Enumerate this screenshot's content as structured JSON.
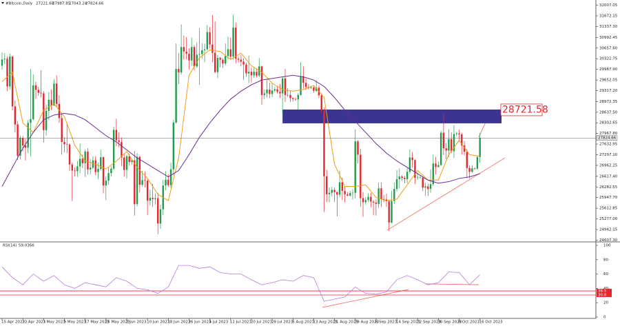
{
  "chart_data": {
    "type": "candlestick",
    "symbol": "#Bitcoin,Daily",
    "categories": [
      "15 Apr 2023",
      null,
      null,
      null,
      null,
      null,
      null,
      null,
      "23 Apr 2023",
      null,
      null,
      null,
      null,
      null,
      null,
      null,
      "1 May 2023",
      null,
      null,
      null,
      null,
      null,
      null,
      null,
      "9 May 2023",
      null,
      null,
      null,
      null,
      null,
      null,
      null,
      "17 May 2023",
      null,
      null,
      null,
      null,
      null,
      null,
      null,
      "25 May 2023",
      null,
      null,
      null,
      null,
      null,
      null,
      null,
      "2 Jun 2023",
      null,
      null,
      null,
      null,
      null,
      null,
      null,
      "10 Jun 2023",
      null,
      null,
      null,
      null,
      null,
      null,
      null,
      "18 Jun 2023",
      null,
      null,
      null,
      null,
      null,
      null,
      null,
      "26 Jun 2023",
      null,
      null,
      null,
      null,
      null,
      null,
      null,
      "4 Jul 2023",
      null,
      null,
      null,
      null,
      null,
      null,
      null,
      "12 Jul 2023",
      null,
      null,
      null,
      null,
      null,
      null,
      null,
      "20 Jul 2023",
      null,
      null,
      null,
      null,
      null,
      null,
      null,
      "28 Jul 2023",
      null,
      null,
      null,
      null,
      null,
      null,
      null,
      "5 Aug 2023",
      null,
      null,
      null,
      null,
      null,
      null,
      null,
      "13 Aug 2023",
      null,
      null,
      null,
      null,
      null,
      null,
      null,
      "21 Aug 2023",
      null,
      null,
      null,
      null,
      null,
      null,
      null,
      "29 Aug 2023",
      null,
      null,
      null,
      null,
      null,
      null,
      null,
      "6 Sep 2023",
      null,
      null,
      null,
      null,
      null,
      null,
      null,
      "14 Sep 2023",
      null,
      null,
      null,
      null,
      null,
      null,
      null,
      "22 Sep 2023",
      null,
      null,
      null,
      null,
      null,
      null,
      null,
      "30 Sep 2023",
      null,
      null,
      null,
      null,
      null,
      null,
      null,
      "8 Oct 2023",
      null,
      null,
      null,
      null,
      null,
      null,
      null,
      "16 Oct 2023"
    ],
    "open": [
      30100,
      30300,
      30320,
      29450,
      30390,
      28820,
      28250,
      27270,
      27820,
      27590,
      27520,
      28300,
      28420,
      29480,
      29340,
      29250,
      29230,
      28070,
      28680,
      29030,
      28850,
      29540,
      28900,
      28450,
      27700,
      27630,
      27620,
      26990,
      26800,
      26780,
      26930,
      27170,
      27030,
      27400,
      26830,
      26890,
      27120,
      26750,
      26850,
      27220,
      26330,
      26480,
      26720,
      26860,
      28080,
      27750,
      27700,
      27210,
      26820,
      27250,
      27070,
      27120,
      25740,
      27230,
      26350,
      26500,
      26480,
      25850,
      25940,
      25900,
      25930,
      25130,
      25580,
      26330,
      26510,
      26340,
      26840,
      28310,
      30000,
      29890,
      30690,
      30550,
      30480,
      30270,
      30690,
      30080,
      30450,
      30470,
      30590,
      30620,
      31160,
      30770,
      30510,
      29900,
      30350,
      30290,
      30170,
      30410,
      30620,
      30390,
      31300,
      30320,
      30290,
      30230,
      30140,
      29860,
      29910,
      29800,
      29910,
      29790,
      30080,
      29180,
      29230,
      29350,
      29210,
      29320,
      29360,
      29280,
      29230,
      29700,
      29180,
      29180,
      29080,
      29050,
      29040,
      29180,
      29770,
      29560,
      29430,
      29400,
      29420,
      29310,
      29410,
      29170,
      28700,
      26620,
      26050,
      26100,
      26190,
      26120,
      26040,
      26430,
      26160,
      26050,
      26010,
      26090,
      26100,
      27720,
      27300,
      25930,
      25800,
      25870,
      25970,
      25820,
      25790,
      25750,
      26240,
      25900,
      25890,
      25830,
      25160,
      25840,
      26220,
      26530,
      26610,
      26570,
      26530,
      26760,
      27210,
      27130,
      26570,
      26580,
      26580,
      26260,
      26300,
      26220,
      26370,
      27020,
      26910,
      26970,
      27990,
      27500,
      27430,
      27790,
      27410,
      27950,
      27970,
      27940,
      27590,
      27390,
      26880,
      26760,
      26870,
      26860,
      27221.68
    ],
    "high": [
      30520,
      30500,
      30400,
      30480,
      30420,
      29000,
      28360,
      27900,
      27890,
      27800,
      28400,
      30000,
      29830,
      29600,
      29440,
      29960,
      29300,
      28880,
      29270,
      29360,
      29680,
      29800,
      29170,
      28580,
      27850,
      28300,
      27650,
      27050,
      26900,
      27100,
      27650,
      27300,
      27470,
      27500,
      27160,
      27250,
      27250,
      27050,
      27450,
      27250,
      26620,
      26900,
      26940,
      28180,
      28430,
      28000,
      27840,
      27330,
      27300,
      27330,
      27160,
      27420,
      27350,
      27260,
      26790,
      26770,
      26530,
      26200,
      26380,
      26080,
      26100,
      25720,
      26500,
      26780,
      26680,
      27050,
      28400,
      30800,
      30500,
      31400,
      31050,
      31000,
      30650,
      30990,
      30750,
      30840,
      31280,
      30810,
      30800,
      31380,
      31320,
      31700,
      31500,
      30440,
      30380,
      30340,
      30800,
      31020,
      30990,
      31700,
      31450,
      30400,
      30440,
      30340,
      30200,
      30420,
      30050,
      30060,
      30020,
      30340,
      30100,
      29350,
      29680,
      29570,
      29550,
      29430,
      29460,
      29530,
      29740,
      30000,
      29400,
      29300,
      29110,
      29100,
      29240,
      30210,
      30080,
      29700,
      29530,
      29470,
      29450,
      29650,
      29480,
      29230,
      28780,
      26820,
      26270,
      26290,
      26260,
      26140,
      26790,
      26580,
      26310,
      26120,
      26160,
      26210,
      28100,
      27760,
      27480,
      26120,
      25970,
      26080,
      26100,
      25870,
      25890,
      26410,
      26420,
      26030,
      26070,
      25880,
      26160,
      26420,
      26810,
      26870,
      26660,
      26630,
      26880,
      27460,
      27380,
      27160,
      26730,
      26640,
      26600,
      26420,
      26390,
      26830,
      27300,
      27230,
      27080,
      28050,
      28580,
      27670,
      28100,
      28000,
      28240,
      28020,
      28090,
      27990,
      27730,
      27470,
      26970,
      26970,
      26900,
      27270,
      27987.85
    ],
    "low": [
      29980,
      30150,
      29300,
      29350,
      28700,
      28000,
      27130,
      27150,
      27400,
      27120,
      27350,
      27250,
      28380,
      29060,
      29150,
      29100,
      27680,
      27900,
      28400,
      28700,
      28830,
      28800,
      28300,
      27300,
      27370,
      27350,
      26780,
      25840,
      26610,
      26600,
      26720,
      26880,
      26600,
      26670,
      26680,
      26850,
      26650,
      26530,
      26800,
      26080,
      25870,
      26350,
      26620,
      26820,
      27560,
      27540,
      26940,
      26600,
      26550,
      26950,
      26980,
      25380,
      25670,
      26120,
      26300,
      26270,
      25400,
      25700,
      25650,
      25720,
      24800,
      24960,
      25400,
      26180,
      26280,
      26250,
      26650,
      28280,
      29520,
      29830,
      30280,
      30300,
      29980,
      30100,
      29960,
      30030,
      29500,
      30320,
      30210,
      30580,
      30640,
      30210,
      29860,
      29710,
      30050,
      30030,
      30110,
      30300,
      30300,
      30290,
      30180,
      30200,
      30080,
      29660,
      29750,
      29550,
      29580,
      29720,
      29730,
      29740,
      28870,
      29050,
      29100,
      29080,
      29110,
      29260,
      29230,
      29080,
      28590,
      28960,
      29110,
      28960,
      28970,
      28990,
      28720,
      29150,
      29380,
      29340,
      29350,
      29360,
      29250,
      29270,
      29080,
      28620,
      25500,
      25800,
      25800,
      25980,
      25810,
      25360,
      25960,
      25870,
      25800,
      25990,
      25980,
      25890,
      25920,
      27020,
      25660,
      25340,
      25730,
      25810,
      25640,
      25390,
      25380,
      25620,
      25650,
      25800,
      25650,
      24900,
      25130,
      25750,
      26140,
      26240,
      26470,
      26400,
      26400,
      26700,
      26890,
      26380,
      26510,
      26540,
      26150,
      26000,
      26000,
      26100,
      26310,
      26670,
      26900,
      26950,
      27290,
      27160,
      27230,
      27350,
      27200,
      27880,
      27710,
      27300,
      27280,
      26560,
      26550,
      26730,
      26820,
      26820,
      27043.24
    ],
    "close": [
      30300,
      30320,
      29450,
      30390,
      28820,
      28250,
      27270,
      27820,
      27590,
      27520,
      28300,
      28420,
      29480,
      29340,
      29250,
      29230,
      28070,
      28680,
      29030,
      28850,
      29540,
      28900,
      28450,
      27700,
      27630,
      27620,
      26990,
      26800,
      26780,
      26930,
      27170,
      27030,
      27400,
      26830,
      26890,
      27120,
      26750,
      26850,
      27220,
      26330,
      26480,
      26720,
      26860,
      28080,
      27750,
      27700,
      27210,
      26820,
      27250,
      27070,
      27120,
      25740,
      27230,
      26350,
      26500,
      26480,
      25850,
      25940,
      25900,
      25930,
      25130,
      25580,
      26330,
      26510,
      26340,
      26840,
      28310,
      30000,
      29890,
      30690,
      30550,
      30480,
      30270,
      30690,
      30080,
      30450,
      30470,
      30590,
      30620,
      31160,
      30770,
      30510,
      29900,
      30350,
      30290,
      30170,
      30410,
      30620,
      30390,
      31300,
      30320,
      30290,
      30230,
      30140,
      29860,
      29910,
      29800,
      29910,
      29790,
      30080,
      29180,
      29230,
      29350,
      29210,
      29320,
      29360,
      29280,
      29230,
      29700,
      29180,
      29180,
      29080,
      29050,
      29040,
      29180,
      29770,
      29560,
      29430,
      29400,
      29420,
      29310,
      29410,
      29170,
      28700,
      26620,
      26050,
      26100,
      26190,
      26120,
      26040,
      26430,
      26160,
      26050,
      26010,
      26090,
      26100,
      27720,
      27300,
      25930,
      25800,
      25870,
      25970,
      25820,
      25790,
      25750,
      26240,
      25900,
      25890,
      25830,
      25160,
      25840,
      26220,
      26530,
      26610,
      26570,
      26530,
      26760,
      27210,
      27130,
      26570,
      26580,
      26580,
      26260,
      26300,
      26220,
      26370,
      27020,
      26910,
      26970,
      27990,
      27500,
      27430,
      27790,
      27410,
      27950,
      27970,
      27940,
      27590,
      27390,
      26880,
      26760,
      26870,
      26860,
      27221.68,
      27824.66
    ],
    "up_color": "#1f9d4c",
    "down_color": "#e4262f",
    "ylim": [
      24573,
      32172
    ],
    "yticks": [
      32007.05,
      31672.15,
      {
        "value": 31337.3,
        "label": "31337.30"
      },
      30992.45,
      {
        "value": 30657.6,
        "label": "30657.60"
      },
      30322.75,
      {
        "value": 29987.9,
        "label": "29987.90"
      },
      29652.05,
      {
        "value": 29317.2,
        "label": "29317.20"
      },
      28972.35,
      {
        "value": 28637.5,
        "label": "28637.50"
      },
      28302.65,
      {
        "value": 27967.8,
        "label": "27967.80"
      },
      27632.95,
      {
        "value": 27297.1,
        "label": "27297.10"
      },
      26962.25,
      {
        "value": 26617.4,
        "label": "26617.40"
      },
      26282.55,
      {
        "value": 25947.7,
        "label": "25947.70"
      },
      25612.85,
      {
        "value": 25277,
        "label": "25277.00"
      },
      24942.15,
      {
        "value": 24607.3,
        "label": "24607.30"
      }
    ],
    "lines": [
      {
        "color": "#f39c12",
        "x": [
          0,
          4,
          8,
          12,
          16,
          20,
          24,
          28,
          32,
          36,
          40,
          44,
          48,
          52,
          56,
          60,
          64,
          68,
          72,
          76,
          80,
          84,
          88,
          92,
          96,
          100,
          104,
          108,
          112,
          116,
          120,
          124,
          128,
          132,
          136,
          140,
          144,
          148,
          152,
          156,
          160,
          164,
          168,
          172,
          176,
          180,
          184
        ],
        "values": [
          29600,
          29900,
          28300,
          28000,
          28700,
          28900,
          28500,
          27600,
          27100,
          27000,
          26850,
          27100,
          27400,
          26900,
          26550,
          26050,
          25850,
          27200,
          29800,
          30350,
          30600,
          30550,
          30300,
          30500,
          30100,
          29900,
          29550,
          29350,
          29300,
          29350,
          29480,
          29100,
          27000,
          26300,
          26300,
          26350,
          25950,
          25850,
          25900,
          26350,
          26800,
          26500,
          26500,
          27300,
          27750,
          27300,
          27250
        ]
      },
      {
        "color": "#6a2c91",
        "x": [
          0,
          4,
          8,
          12,
          16,
          20,
          24,
          28,
          32,
          36,
          40,
          44,
          48,
          52,
          56,
          60,
          64,
          68,
          72,
          76,
          80,
          84,
          88,
          92,
          96,
          100,
          104,
          108,
          112,
          116,
          120,
          124,
          128,
          132,
          136,
          140,
          144,
          148,
          152,
          156,
          160,
          164,
          168,
          172,
          176,
          180,
          184
        ],
        "values": [
          26300,
          26900,
          27500,
          28000,
          28400,
          28550,
          28600,
          28550,
          28400,
          28150,
          27900,
          27700,
          27450,
          27200,
          27000,
          26800,
          26600,
          26800,
          27300,
          27850,
          28300,
          28700,
          29050,
          29300,
          29500,
          29650,
          29700,
          29750,
          29800,
          29750,
          29650,
          29450,
          29100,
          28700,
          28350,
          28000,
          27650,
          27350,
          27100,
          26900,
          26700,
          26500,
          26400,
          26450,
          26550,
          26600,
          26700
        ]
      }
    ],
    "zone": {
      "value": 28721.58,
      "color": "#3b3591",
      "label_color": "#e4262f"
    },
    "rsi": {
      "title": "RSI(14)",
      "color": "#b77ad6",
      "ylim": [
        0,
        100
      ],
      "yticks": [
        0,
        20,
        40,
        60,
        80,
        100
      ],
      "levels": [
        36.5,
        30.8
      ],
      "level_color": "#e4262f",
      "x": [
        0,
        4,
        8,
        12,
        16,
        20,
        24,
        28,
        32,
        36,
        40,
        44,
        48,
        52,
        56,
        60,
        64,
        68,
        72,
        76,
        80,
        84,
        88,
        92,
        96,
        100,
        104,
        108,
        112,
        116,
        120,
        124,
        128,
        132,
        136,
        140,
        144,
        148,
        152,
        156,
        160,
        164,
        168,
        172,
        176,
        180,
        184
      ],
      "values": [
        70,
        55,
        45,
        60,
        50,
        58,
        45,
        40,
        48,
        45,
        42,
        55,
        50,
        40,
        38,
        33,
        42,
        72,
        72,
        68,
        70,
        62,
        60,
        60,
        52,
        45,
        48,
        52,
        50,
        58,
        55,
        22,
        25,
        28,
        42,
        33,
        32,
        35,
        52,
        58,
        52,
        45,
        48,
        63,
        62,
        45,
        59.0366
      ]
    }
  }
}
